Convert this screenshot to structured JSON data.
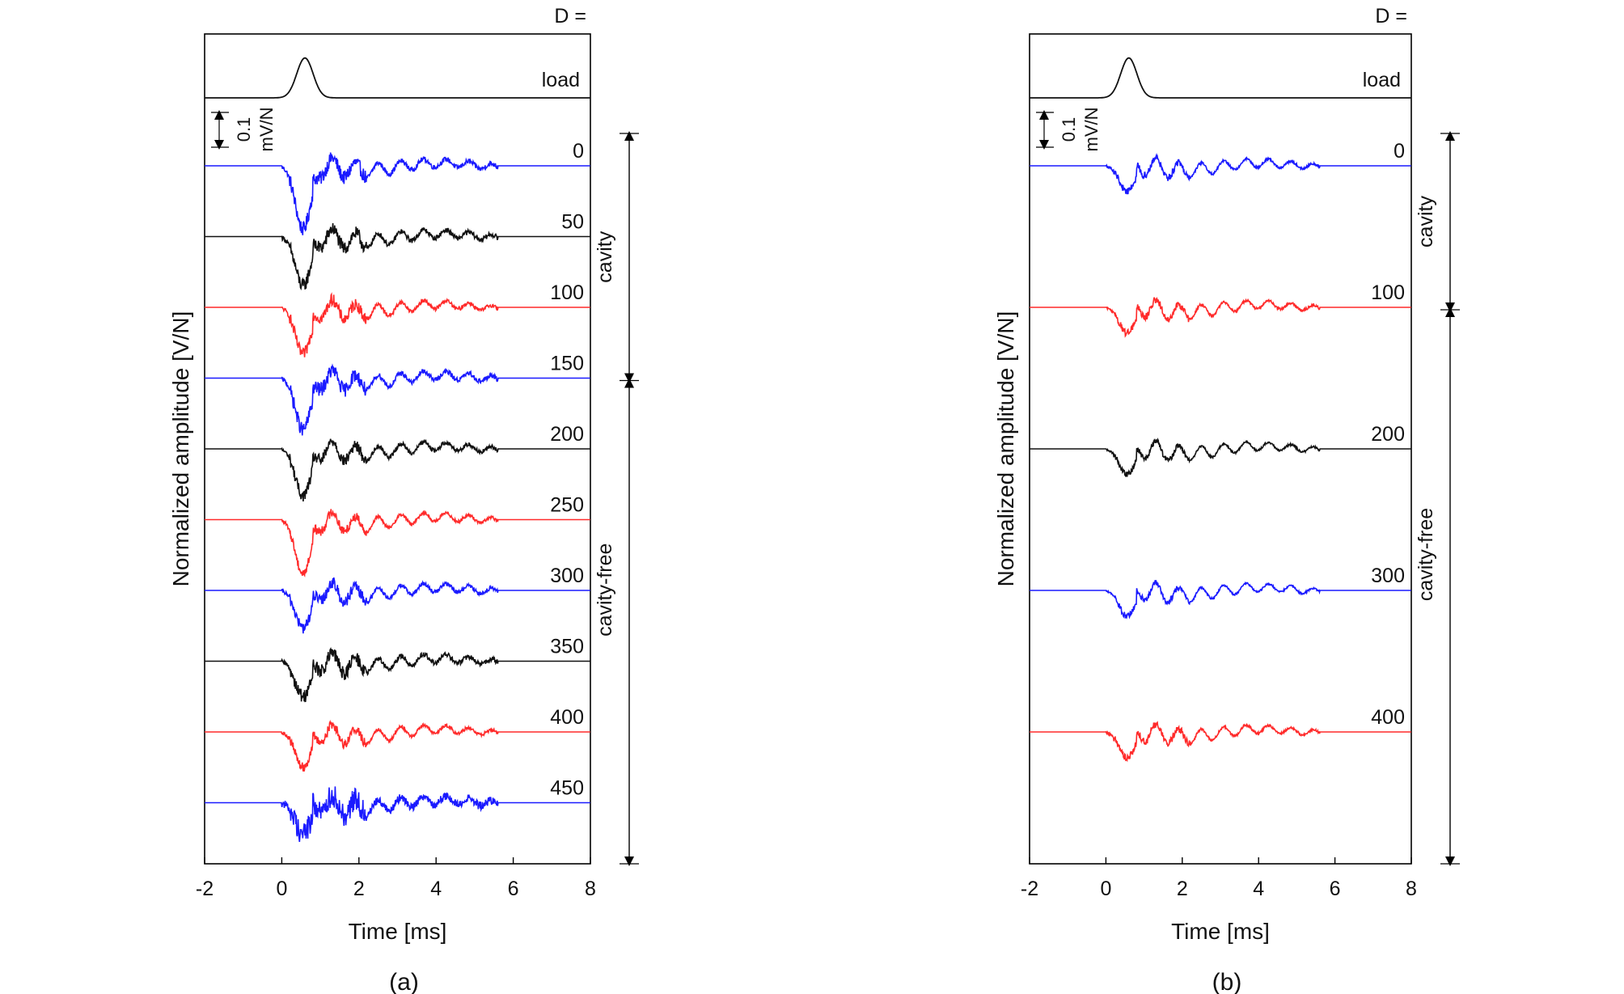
{
  "chart_data": [
    {
      "panel_label": "(a)",
      "type": "line",
      "xlabel": "Time [ms]",
      "ylabel": "Normalized amplitude [V/N]",
      "xlim": [
        -2,
        8
      ],
      "xticks": [
        "-2",
        "0",
        "2",
        "4",
        "6",
        "8"
      ],
      "header": "D =",
      "scale_bar": {
        "value": "0.1",
        "unit": "mV/N"
      },
      "load_label": "load",
      "series": [
        {
          "name": "0",
          "color": "#1a1aff",
          "pulse_depth": 0.27,
          "noise": 0.06,
          "group": "cavity"
        },
        {
          "name": "50",
          "color": "#111111",
          "pulse_depth": 0.21,
          "noise": 0.06,
          "group": "cavity"
        },
        {
          "name": "100",
          "color": "#ff2a2a",
          "pulse_depth": 0.2,
          "noise": 0.05,
          "group": "cavity"
        },
        {
          "name": "150",
          "color": "#1a1aff",
          "pulse_depth": 0.22,
          "noise": 0.06,
          "group": "cavity"
        },
        {
          "name": "200",
          "color": "#111111",
          "pulse_depth": 0.2,
          "noise": 0.05,
          "group": "cavity-free"
        },
        {
          "name": "250",
          "color": "#ff2a2a",
          "pulse_depth": 0.23,
          "noise": 0.04,
          "group": "cavity-free"
        },
        {
          "name": "300",
          "color": "#1a1aff",
          "pulse_depth": 0.16,
          "noise": 0.05,
          "group": "cavity-free"
        },
        {
          "name": "350",
          "color": "#111111",
          "pulse_depth": 0.15,
          "noise": 0.06,
          "group": "cavity-free"
        },
        {
          "name": "400",
          "color": "#ff2a2a",
          "pulse_depth": 0.15,
          "noise": 0.04,
          "group": "cavity-free"
        },
        {
          "name": "450",
          "color": "#1a1aff",
          "pulse_depth": 0.13,
          "noise": 0.1,
          "group": "cavity-free"
        }
      ],
      "groups": {
        "cavity": "cavity",
        "cavity_free": "cavity-free"
      }
    },
    {
      "panel_label": "(b)",
      "type": "line",
      "xlabel": "Time [ms]",
      "ylabel": "Normalized amplitude [V/N]",
      "xlim": [
        -2,
        8
      ],
      "xticks": [
        "-2",
        "0",
        "2",
        "4",
        "6",
        "8"
      ],
      "header": "D =",
      "scale_bar": {
        "value": "0.1",
        "unit": "mV/N"
      },
      "load_label": "load",
      "series": [
        {
          "name": "0",
          "color": "#1a1aff",
          "pulse_depth": 0.11,
          "noise": 0.03,
          "group": "cavity"
        },
        {
          "name": "100",
          "color": "#ff2a2a",
          "pulse_depth": 0.11,
          "noise": 0.03,
          "group": "cavity"
        },
        {
          "name": "200",
          "color": "#111111",
          "pulse_depth": 0.11,
          "noise": 0.025,
          "group": "cavity-free"
        },
        {
          "name": "300",
          "color": "#1a1aff",
          "pulse_depth": 0.11,
          "noise": 0.025,
          "group": "cavity-free"
        },
        {
          "name": "400",
          "color": "#ff2a2a",
          "pulse_depth": 0.11,
          "noise": 0.03,
          "group": "cavity-free"
        }
      ],
      "groups": {
        "cavity": "cavity",
        "cavity_free": "cavity-free"
      }
    }
  ]
}
